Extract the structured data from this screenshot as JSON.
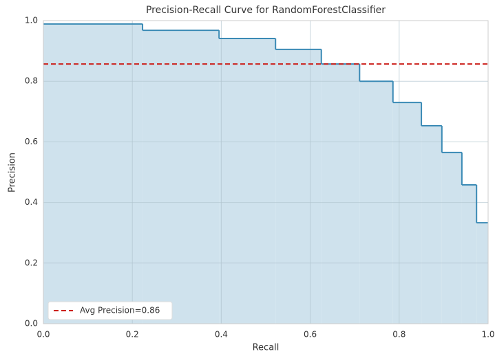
{
  "chart_data": {
    "type": "step",
    "title": "Precision-Recall Curve for RandomForestClassifier",
    "x_label": "Recall",
    "y_label": "Precision",
    "x": [
      0,
      0.223,
      0.395,
      0.522,
      0.625,
      0.711,
      0.786,
      0.85,
      0.896,
      0.941,
      0.974,
      1.0
    ],
    "values": [
      0.989,
      0.968,
      0.941,
      0.905,
      0.857,
      0.8,
      0.73,
      0.653,
      0.565,
      0.458,
      0.333,
      0.333
    ],
    "color": "#3a8ab5",
    "fill_color": "#cfe2ed",
    "avg_precision": {
      "name": "Avg Precision=0.86",
      "value": 0.857,
      "color": "#cc1f1a"
    },
    "xlim": [
      0,
      1
    ],
    "ylim": [
      0,
      1
    ],
    "xticks": [
      {
        "value": 0,
        "label": "0.0"
      },
      0.2,
      0.4,
      0.6,
      0.8,
      {
        "value": 1,
        "label": "1.0"
      }
    ],
    "yticks": [
      {
        "value": 0,
        "label": "0.0"
      },
      0.2,
      0.4,
      0.6,
      0.8,
      {
        "value": 1,
        "label": "1.0"
      }
    ],
    "grid": true,
    "legend_position": "lower left"
  }
}
